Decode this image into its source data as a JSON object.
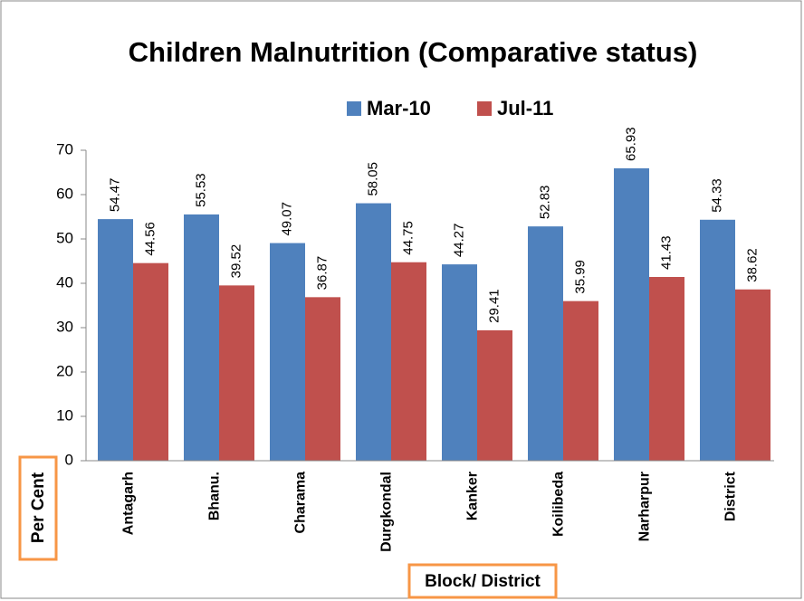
{
  "chart_data": {
    "type": "bar",
    "title": "Children Malnutrition (Comparative status)",
    "x_label": "Block/ District",
    "y_label": "Per Cent",
    "categories": [
      "Antagarh",
      "Bhanu.",
      "Charama",
      "Durgkondal",
      "Kanker",
      "Koilibeda",
      "Narharpur",
      "District"
    ],
    "series": [
      {
        "name": "Mar-10",
        "color": "#4f81bd",
        "values": [
          54.47,
          55.53,
          49.07,
          58.05,
          44.27,
          52.83,
          65.93,
          54.33
        ]
      },
      {
        "name": "Jul-11",
        "color": "#c0504d",
        "values": [
          44.56,
          39.52,
          36.87,
          44.75,
          29.41,
          35.99,
          41.43,
          38.62
        ]
      }
    ],
    "ylim": [
      0,
      70
    ],
    "yticks": [
      0,
      10,
      20,
      30,
      40,
      50,
      60,
      70
    ],
    "legend": "top"
  }
}
